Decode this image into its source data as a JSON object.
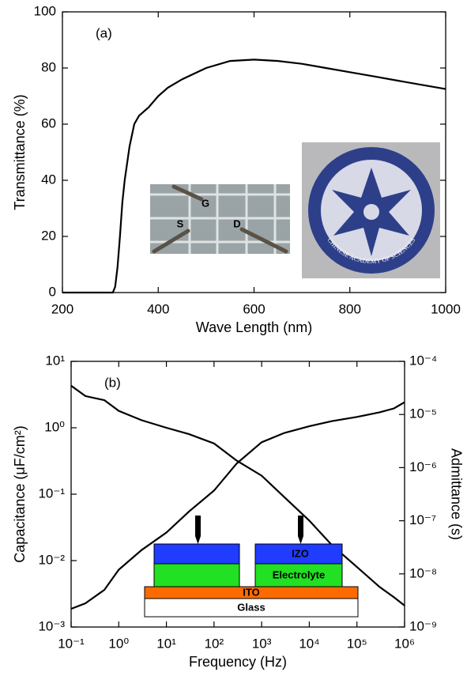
{
  "chart_data": [
    {
      "type": "line",
      "annotation": "(a)",
      "xlabel": "Wave Length (nm)",
      "ylabel": "Transmittance (%)",
      "x": [
        200,
        300,
        305,
        310,
        315,
        320,
        325,
        330,
        340,
        350,
        360,
        380,
        400,
        420,
        450,
        500,
        550,
        600,
        650,
        700,
        750,
        800,
        850,
        900,
        950,
        1000
      ],
      "values": [
        0,
        0,
        0,
        2,
        9,
        20,
        32,
        40,
        52,
        60,
        63,
        66,
        70,
        73,
        76,
        80,
        82.5,
        83,
        82.5,
        81.5,
        80,
        78.5,
        77,
        75.5,
        74,
        72.5
      ],
      "color": "#000000",
      "xlim": [
        200,
        1000
      ],
      "ylim": [
        0,
        100
      ],
      "xticks": [
        200,
        400,
        600,
        800,
        1000
      ],
      "yticks": [
        0,
        20,
        40,
        60,
        80,
        100
      ],
      "inset_labels": [
        "G",
        "S",
        "D"
      ],
      "logo_text": "CHINESE ACADEMY OF SCIENCES"
    },
    {
      "type": "line",
      "annotation": "(b)",
      "xlabel": "Frequency (Hz)",
      "ylabel": "Capacitance (μF/cm²)",
      "y2label": "Admittance (s)",
      "log_x": true,
      "log_y": true,
      "x": [
        0.1,
        0.2,
        0.5,
        1,
        3,
        10,
        30,
        100,
        300,
        1000,
        3000,
        10000,
        30000,
        100000,
        300000,
        600000,
        1000000
      ],
      "series": [
        {
          "color": "#000000",
          "values": [
            4.3,
            3.0,
            2.6,
            1.8,
            1.3,
            1.0,
            0.8,
            0.58,
            0.32,
            0.19,
            0.09,
            0.04,
            0.017,
            0.008,
            0.004,
            0.0028,
            0.0021
          ]
        },
        {
          "color": "#000000",
          "axis": "y2",
          "values": [
            2.2e-09,
            2.8e-09,
            5e-09,
            1.2e-08,
            2.8e-08,
            6e-08,
            1.5e-07,
            3.7e-07,
            1.2e-06,
            3e-06,
            4.5e-06,
            6e-06,
            7.5e-06,
            9e-06,
            1.1e-05,
            1.3e-05,
            1.7e-05
          ]
        }
      ],
      "xlim": [
        0.1,
        1000000
      ],
      "ylim": [
        0.001,
        10
      ],
      "y2lim": [
        1e-09,
        0.0001
      ],
      "xticks": [
        {
          "value": 0.1,
          "label": "10⁻¹"
        },
        {
          "value": 1,
          "label": "10⁰"
        },
        {
          "value": 10,
          "label": "10¹"
        },
        {
          "value": 100,
          "label": "10²"
        },
        {
          "value": 1000,
          "label": "10³"
        },
        {
          "value": 10000,
          "label": "10⁴"
        },
        {
          "value": 100000,
          "label": "10⁵"
        },
        {
          "value": 1000000,
          "label": "10⁶"
        }
      ],
      "yticks": [
        {
          "value": 0.001,
          "label": "10⁻³"
        },
        {
          "value": 0.01,
          "label": "10⁻²"
        },
        {
          "value": 0.1,
          "label": "10⁻¹"
        },
        {
          "value": 1,
          "label": "10⁰"
        },
        {
          "value": 10,
          "label": "10¹"
        }
      ],
      "y2ticks": [
        {
          "value": 1e-09,
          "label": "10⁻⁹"
        },
        {
          "value": 1e-08,
          "label": "10⁻⁸"
        },
        {
          "value": 1e-07,
          "label": "10⁻⁷"
        },
        {
          "value": 1e-06,
          "label": "10⁻⁶"
        },
        {
          "value": 1e-05,
          "label": "10⁻⁵"
        },
        {
          "value": 0.0001,
          "label": "10⁻⁴"
        }
      ],
      "inset_labels": [
        "IZO",
        "Electrolyte",
        "ITO",
        "Glass"
      ]
    }
  ]
}
